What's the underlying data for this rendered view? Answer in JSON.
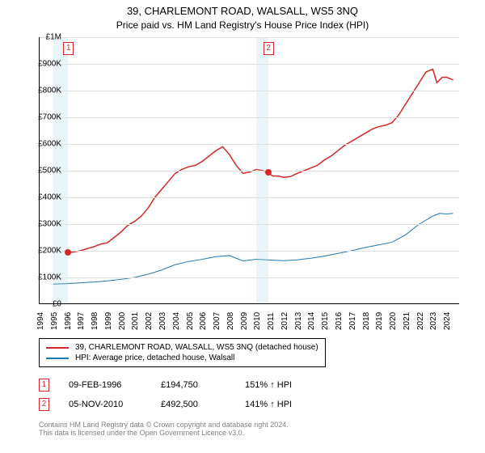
{
  "title": "39, CHARLEMONT ROAD, WALSALL, WS5 3NQ",
  "subtitle": "Price paid vs. HM Land Registry's House Price Index (HPI)",
  "chart": {
    "type": "line",
    "background_color": "#ffffff",
    "grid_color": "#e0e0e0",
    "band_color": "rgba(173,216,230,0.25)",
    "x": {
      "min": 1994,
      "max": 2025,
      "ticks": [
        1994,
        1995,
        1996,
        1997,
        1998,
        1999,
        2000,
        2001,
        2002,
        2003,
        2004,
        2005,
        2006,
        2007,
        2008,
        2009,
        2010,
        2011,
        2012,
        2013,
        2014,
        2015,
        2016,
        2017,
        2018,
        2019,
        2020,
        2021,
        2022,
        2023,
        2024
      ]
    },
    "y": {
      "min": 0,
      "max": 1000000,
      "unit": "£",
      "ticks": [
        0,
        100000,
        200000,
        300000,
        400000,
        500000,
        600000,
        700000,
        800000,
        900000,
        1000000
      ],
      "labels": [
        "£0",
        "£100K",
        "£200K",
        "£300K",
        "£400K",
        "£500K",
        "£600K",
        "£700K",
        "£800K",
        "£900K",
        "£1M"
      ]
    },
    "series": [
      {
        "name": "39, CHARLEMONT ROAD, WALSALL, WS5 3NQ (detached house)",
        "color": "#d62728",
        "line_width": 1.5,
        "data": [
          [
            1996.1,
            194750
          ],
          [
            1996.5,
            195000
          ],
          [
            1997,
            200000
          ],
          [
            1997.5,
            208000
          ],
          [
            1998,
            215000
          ],
          [
            1998.5,
            225000
          ],
          [
            1999,
            230000
          ],
          [
            1999.5,
            250000
          ],
          [
            2000,
            270000
          ],
          [
            2000.5,
            295000
          ],
          [
            2001,
            310000
          ],
          [
            2001.5,
            330000
          ],
          [
            2002,
            360000
          ],
          [
            2002.5,
            400000
          ],
          [
            2003,
            430000
          ],
          [
            2003.5,
            460000
          ],
          [
            2004,
            490000
          ],
          [
            2004.5,
            505000
          ],
          [
            2005,
            515000
          ],
          [
            2005.5,
            520000
          ],
          [
            2006,
            535000
          ],
          [
            2006.5,
            555000
          ],
          [
            2007,
            575000
          ],
          [
            2007.5,
            590000
          ],
          [
            2008,
            560000
          ],
          [
            2008.5,
            520000
          ],
          [
            2009,
            490000
          ],
          [
            2009.5,
            495000
          ],
          [
            2010,
            505000
          ],
          [
            2010.5,
            500000
          ],
          [
            2010.85,
            492500
          ],
          [
            2011.2,
            480000
          ],
          [
            2011.6,
            480000
          ],
          [
            2012,
            475000
          ],
          [
            2012.5,
            478000
          ],
          [
            2013,
            490000
          ],
          [
            2013.5,
            500000
          ],
          [
            2014,
            510000
          ],
          [
            2014.5,
            520000
          ],
          [
            2015,
            540000
          ],
          [
            2015.5,
            555000
          ],
          [
            2016,
            575000
          ],
          [
            2016.5,
            595000
          ],
          [
            2017,
            610000
          ],
          [
            2017.5,
            625000
          ],
          [
            2018,
            640000
          ],
          [
            2018.5,
            655000
          ],
          [
            2019,
            665000
          ],
          [
            2019.5,
            670000
          ],
          [
            2020,
            680000
          ],
          [
            2020.5,
            710000
          ],
          [
            2021,
            750000
          ],
          [
            2021.5,
            790000
          ],
          [
            2022,
            830000
          ],
          [
            2022.5,
            870000
          ],
          [
            2023,
            880000
          ],
          [
            2023.3,
            830000
          ],
          [
            2023.7,
            850000
          ],
          [
            2024,
            850000
          ],
          [
            2024.5,
            840000
          ]
        ]
      },
      {
        "name": "HPI: Average price, detached house, Walsall",
        "color": "#1f77b4",
        "line_width": 1,
        "data": [
          [
            1995,
            75000
          ],
          [
            1996,
            77000
          ],
          [
            1997,
            80000
          ],
          [
            1998,
            83000
          ],
          [
            1999,
            87000
          ],
          [
            2000,
            93000
          ],
          [
            2001,
            100000
          ],
          [
            2002,
            112000
          ],
          [
            2003,
            128000
          ],
          [
            2004,
            148000
          ],
          [
            2005,
            160000
          ],
          [
            2006,
            168000
          ],
          [
            2007,
            178000
          ],
          [
            2008,
            182000
          ],
          [
            2008.5,
            172000
          ],
          [
            2009,
            162000
          ],
          [
            2010,
            168000
          ],
          [
            2011,
            165000
          ],
          [
            2012,
            163000
          ],
          [
            2013,
            166000
          ],
          [
            2014,
            172000
          ],
          [
            2015,
            180000
          ],
          [
            2016,
            190000
          ],
          [
            2017,
            200000
          ],
          [
            2018,
            212000
          ],
          [
            2019,
            222000
          ],
          [
            2020,
            232000
          ],
          [
            2021,
            260000
          ],
          [
            2022,
            300000
          ],
          [
            2023,
            330000
          ],
          [
            2023.5,
            340000
          ],
          [
            2024,
            338000
          ],
          [
            2024.5,
            340000
          ]
        ]
      }
    ],
    "sale_markers": [
      {
        "n": 1,
        "x": 1996.1,
        "y": 194750,
        "color": "#d62728"
      },
      {
        "n": 2,
        "x": 2010.85,
        "y": 492500,
        "color": "#d62728"
      }
    ],
    "bands": [
      {
        "from": 1995,
        "to": 1996.1
      },
      {
        "from": 2010,
        "to": 2010.85
      }
    ]
  },
  "legend": {
    "items": [
      {
        "label": "39, CHARLEMONT ROAD, WALSALL, WS5 3NQ (detached house)",
        "color": "#d62728"
      },
      {
        "label": "HPI: Average price, detached house, Walsall",
        "color": "#1f77b4"
      }
    ]
  },
  "sales": [
    {
      "n": 1,
      "date": "09-FEB-1996",
      "price": "£194,750",
      "pct": "151% ↑ HPI",
      "color": "#d62728"
    },
    {
      "n": 2,
      "date": "05-NOV-2010",
      "price": "£492,500",
      "pct": "141% ↑ HPI",
      "color": "#d62728"
    }
  ],
  "footer": {
    "line1": "Contains HM Land Registry data © Crown copyright and database right 2024.",
    "line2": "This data is licensed under the Open Government Licence v3.0."
  }
}
